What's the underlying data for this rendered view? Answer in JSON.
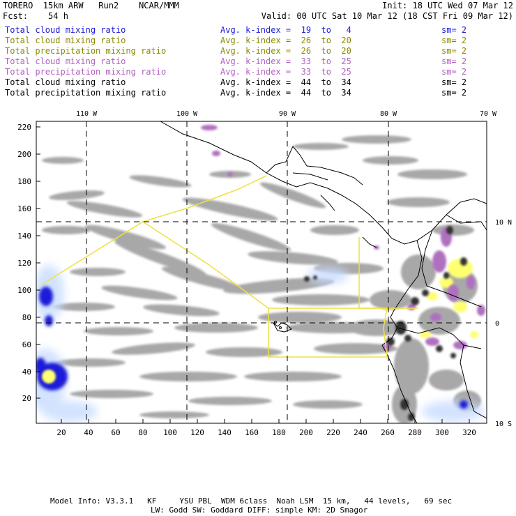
{
  "header": {
    "model_line": "TORERO  15km ARW   Run2    NCAR/MMM",
    "init_line": "Init: 18 UTC Wed 07 Mar 12",
    "fcst_line": "Fcst:    54 h",
    "valid_line": "Valid: 00 UTC Sat 10 Mar 12 (18 CST Fri 09 Mar 12)"
  },
  "legend": [
    {
      "label": "Total cloud mixing ratio",
      "kindex": "Avg. k-index =  19  to   4",
      "sm": "sm= 2",
      "color": "#1a1ad8"
    },
    {
      "label": "Total cloud mixing ratio",
      "kindex": "Avg. k-index =  26  to  20",
      "sm": "sm= 2",
      "color": "#8a8a00"
    },
    {
      "label": "Total precipitation mixing ratio",
      "kindex": "Avg. k-index =  26  to  20",
      "sm": "sm= 2",
      "color": "#8a8a00"
    },
    {
      "label": "Total cloud mixing ratio",
      "kindex": "Avg. k-index =  33  to  25",
      "sm": "sm= 2",
      "color": "#b060c0"
    },
    {
      "label": "Total precipitation mixing ratio",
      "kindex": "Avg. k-index =  33  to  25",
      "sm": "sm= 2",
      "color": "#b060c0"
    },
    {
      "label": "Total cloud mixing ratio",
      "kindex": "Avg. k-index =  44  to  34",
      "sm": "sm= 2",
      "color": "#000000"
    },
    {
      "label": "Total precipitation mixing ratio",
      "kindex": "Avg. k-index =  44  to  34",
      "sm": "sm= 2",
      "color": "#000000"
    }
  ],
  "map": {
    "x_axis_labels": [
      "20",
      "40",
      "60",
      "80",
      "100",
      "120",
      "140",
      "160",
      "180",
      "200",
      "220",
      "240",
      "260",
      "280",
      "300",
      "320"
    ],
    "y_axis_labels": [
      "20",
      "40",
      "60",
      "80",
      "100",
      "120",
      "140",
      "160",
      "180",
      "200",
      "220"
    ],
    "lon_labels": [
      "110 W",
      "100 W",
      "90 W",
      "80 W",
      "70 W"
    ],
    "lat_labels": [
      "10 N",
      "0",
      "10 S"
    ],
    "colors": {
      "cloud_gray": "#a8a8a8",
      "low_kindex_blue": "#1a1ad8",
      "mid_kindex_yellow": "#ffff60",
      "high_kindex_purple": "#b070c0",
      "very_high_kindex_black": "#303030",
      "domain_outline": "#f0e040"
    }
  },
  "footer": {
    "line1": "Model Info: V3.3.1   KF     YSU PBL  WDM 6class  Noah LSM  15 km,   44 levels,   69 sec",
    "line2": "LW: Godd SW: Goddard DIFF: simple KM: 2D Smagor"
  }
}
